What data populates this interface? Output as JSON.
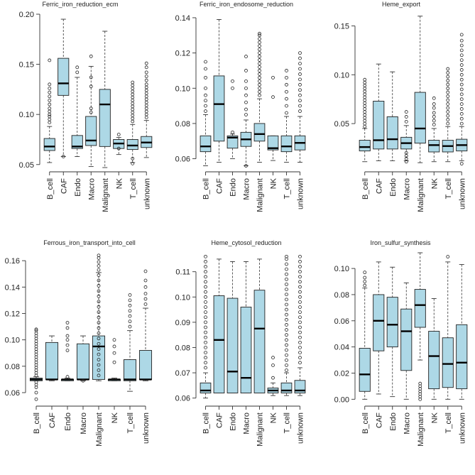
{
  "chart_data": [
    {
      "type": "boxplot",
      "title": "Ferric_iron_reduction_ecm",
      "categories": [
        "B_cell",
        "CAF",
        "Endo",
        "Macro",
        "Malignant",
        "NK",
        "T_cell",
        "unknown"
      ],
      "ylim": [
        0.047,
        0.2
      ],
      "yticks": [
        0.05,
        0.1,
        0.15,
        0.2
      ],
      "ytick_labels": [
        "0.05",
        "0.10",
        "0.15",
        "0.20"
      ],
      "boxes": [
        {
          "min": 0.052,
          "q1": 0.064,
          "median": 0.068,
          "q3": 0.076,
          "max": 0.088,
          "outliers": [
            0.092,
            0.095,
            0.098,
            0.1,
            0.103,
            0.106,
            0.11,
            0.114,
            0.118,
            0.122,
            0.126,
            0.13,
            0.154
          ]
        },
        {
          "min": 0.058,
          "q1": 0.119,
          "median": 0.131,
          "q3": 0.156,
          "max": 0.195,
          "outliers": [
            0.058
          ]
        },
        {
          "min": 0.058,
          "q1": 0.066,
          "median": 0.068,
          "q3": 0.079,
          "max": 0.137,
          "outliers": [
            0.142,
            0.147
          ]
        },
        {
          "min": 0.048,
          "q1": 0.069,
          "median": 0.074,
          "q3": 0.098,
          "max": 0.148,
          "outliers": [
            0.102,
            0.106,
            0.128,
            0.137,
            0.158
          ]
        },
        {
          "min": 0.047,
          "q1": 0.068,
          "median": 0.11,
          "q3": 0.125,
          "max": 0.183,
          "outliers": []
        },
        {
          "min": 0.06,
          "q1": 0.066,
          "median": 0.071,
          "q3": 0.075,
          "max": 0.077,
          "outliers": [
            0.066,
            0.08
          ]
        },
        {
          "min": 0.052,
          "q1": 0.065,
          "median": 0.069,
          "q3": 0.075,
          "max": 0.09,
          "outliers": [
            0.051,
            0.056,
            0.093,
            0.096,
            0.099,
            0.102,
            0.105,
            0.108,
            0.111,
            0.114,
            0.117,
            0.12,
            0.123,
            0.126,
            0.129,
            0.132
          ]
        },
        {
          "min": 0.057,
          "q1": 0.067,
          "median": 0.072,
          "q3": 0.078,
          "max": 0.094,
          "outliers": [
            0.097,
            0.1,
            0.103,
            0.106,
            0.109,
            0.112,
            0.115,
            0.118,
            0.121,
            0.124,
            0.127,
            0.13,
            0.134,
            0.138,
            0.142,
            0.147,
            0.151
          ]
        }
      ]
    },
    {
      "type": "boxplot",
      "title": "Ferric_iron_endosome_reduction",
      "categories": [
        "B_cell",
        "CAF",
        "Endo",
        "Macro",
        "Malignant",
        "NK",
        "T_cell",
        "unknown"
      ],
      "ylim": [
        0.055,
        0.142
      ],
      "yticks": [
        0.06,
        0.08,
        0.1,
        0.12,
        0.14
      ],
      "ytick_labels": [
        "0.06",
        "0.08",
        "0.10",
        "0.12",
        "0.14"
      ],
      "boxes": [
        {
          "min": 0.056,
          "q1": 0.064,
          "median": 0.067,
          "q3": 0.073,
          "max": 0.085,
          "outliers": [
            0.087,
            0.09,
            0.093,
            0.096,
            0.1,
            0.106,
            0.111,
            0.115
          ]
        },
        {
          "min": 0.058,
          "q1": 0.07,
          "median": 0.091,
          "q3": 0.107,
          "max": 0.139,
          "outliers": []
        },
        {
          "min": 0.06,
          "q1": 0.066,
          "median": 0.072,
          "q3": 0.073,
          "max": 0.074,
          "outliers": [
            0.075,
            0.1,
            0.104
          ]
        },
        {
          "min": 0.056,
          "q1": 0.067,
          "median": 0.071,
          "q3": 0.075,
          "max": 0.082,
          "outliers": [
            0.056,
            0.085,
            0.088,
            0.092,
            0.096,
            0.1,
            0.104,
            0.11,
            0.118
          ]
        },
        {
          "min": 0.058,
          "q1": 0.07,
          "median": 0.074,
          "q3": 0.08,
          "max": 0.094,
          "outliers": [
            0.096,
            0.098,
            0.1,
            0.102,
            0.104,
            0.106,
            0.108,
            0.11,
            0.112,
            0.114,
            0.116,
            0.118,
            0.12,
            0.122,
            0.124,
            0.126,
            0.128,
            0.13,
            0.131
          ]
        },
        {
          "min": 0.059,
          "q1": 0.065,
          "median": 0.066,
          "q3": 0.073,
          "max": 0.073,
          "outliers": [
            0.095,
            0.106
          ]
        },
        {
          "min": 0.058,
          "q1": 0.064,
          "median": 0.067,
          "q3": 0.073,
          "max": 0.084,
          "outliers": [
            0.086,
            0.09,
            0.094,
            0.098,
            0.102,
            0.106,
            0.11
          ]
        },
        {
          "min": 0.058,
          "q1": 0.065,
          "median": 0.069,
          "q3": 0.073,
          "max": 0.084,
          "outliers": [
            0.087,
            0.09,
            0.093,
            0.096,
            0.099,
            0.102,
            0.105,
            0.108,
            0.111,
            0.114,
            0.117,
            0.12
          ]
        }
      ]
    },
    {
      "type": "boxplot",
      "title": "Heme_export",
      "categories": [
        "B_cell",
        "CAF",
        "Endo",
        "Macro",
        "Malignant",
        "NK",
        "T_cell",
        "unknown"
      ],
      "ylim": [
        0.005,
        0.162
      ],
      "yticks": [
        0.05,
        0.1,
        0.15
      ],
      "ytick_labels": [
        "0.05",
        "0.10",
        "0.15"
      ],
      "boxes": [
        {
          "min": 0.011,
          "q1": 0.022,
          "median": 0.026,
          "q3": 0.033,
          "max": 0.045,
          "outliers": [
            0.047,
            0.05,
            0.053,
            0.056,
            0.059,
            0.062,
            0.065,
            0.068,
            0.071,
            0.074,
            0.077,
            0.08,
            0.083,
            0.086,
            0.089,
            0.092,
            0.095
          ]
        },
        {
          "min": 0.012,
          "q1": 0.024,
          "median": 0.033,
          "q3": 0.073,
          "max": 0.111,
          "outliers": []
        },
        {
          "min": 0.012,
          "q1": 0.024,
          "median": 0.034,
          "q3": 0.057,
          "max": 0.103,
          "outliers": []
        },
        {
          "min": 0.012,
          "q1": 0.024,
          "median": 0.03,
          "q3": 0.036,
          "max": 0.048,
          "outliers": [
            0.011,
            0.014,
            0.017,
            0.02,
            0.052,
            0.057,
            0.062
          ]
        },
        {
          "min": 0.01,
          "q1": 0.03,
          "median": 0.045,
          "q3": 0.082,
          "max": 0.16,
          "outliers": []
        },
        {
          "min": 0.011,
          "q1": 0.021,
          "median": 0.028,
          "q3": 0.033,
          "max": 0.045,
          "outliers": [
            0.049,
            0.053,
            0.057,
            0.061,
            0.066,
            0.07,
            0.076
          ]
        },
        {
          "min": 0.011,
          "q1": 0.021,
          "median": 0.027,
          "q3": 0.033,
          "max": 0.047,
          "outliers": [
            0.05,
            0.054,
            0.058,
            0.062,
            0.066,
            0.07,
            0.074,
            0.078,
            0.082,
            0.086,
            0.09,
            0.094,
            0.098,
            0.102,
            0.106
          ]
        },
        {
          "min": 0.012,
          "q1": 0.022,
          "median": 0.028,
          "q3": 0.034,
          "max": 0.047,
          "outliers": [
            0.009,
            0.05,
            0.055,
            0.06,
            0.065,
            0.07,
            0.075,
            0.08,
            0.085,
            0.09,
            0.095,
            0.1,
            0.105,
            0.11,
            0.115,
            0.12,
            0.125,
            0.13,
            0.135,
            0.141
          ]
        }
      ]
    },
    {
      "type": "boxplot",
      "title": "Ferrous_iron_transport_into_cell",
      "categories": [
        "B_cell",
        "CAF",
        "Endo",
        "Macro",
        "Malignant",
        "NK",
        "T_cell",
        "unknown"
      ],
      "ylim": [
        0.053,
        0.166
      ],
      "yticks": [
        0.06,
        0.08,
        0.1,
        0.12,
        0.14,
        0.16
      ],
      "ytick_labels": [
        "0.06",
        "0.08",
        "0.10",
        "0.12",
        "0.14",
        "0.16"
      ],
      "boxes": [
        {
          "min": 0.069,
          "q1": 0.069,
          "median": 0.07,
          "q3": 0.071,
          "max": 0.072,
          "outliers": [
            0.055,
            0.06,
            0.064,
            0.066,
            0.068,
            0.073,
            0.075,
            0.077,
            0.079,
            0.081,
            0.083,
            0.085,
            0.087,
            0.089,
            0.091,
            0.093,
            0.095,
            0.097,
            0.099,
            0.101,
            0.103,
            0.105,
            0.107,
            0.108
          ]
        },
        {
          "min": 0.069,
          "q1": 0.07,
          "median": 0.07,
          "q3": 0.098,
          "max": 0.103,
          "outliers": []
        },
        {
          "min": 0.069,
          "q1": 0.069,
          "median": 0.07,
          "q3": 0.07,
          "max": 0.071,
          "outliers": [
            0.072,
            0.092,
            0.096,
            0.1,
            0.103,
            0.109,
            0.113
          ]
        },
        {
          "min": 0.069,
          "q1": 0.07,
          "median": 0.07,
          "q3": 0.097,
          "max": 0.103,
          "outliers": [
            0.069
          ]
        },
        {
          "min": 0.069,
          "q1": 0.07,
          "median": 0.095,
          "q3": 0.103,
          "max": 0.151,
          "outliers": [
            0.073,
            0.077,
            0.081,
            0.085,
            0.089,
            0.093,
            0.097,
            0.101,
            0.105,
            0.109,
            0.113,
            0.117,
            0.121,
            0.125,
            0.129,
            0.133,
            0.137,
            0.141,
            0.145,
            0.149,
            0.153,
            0.156,
            0.159,
            0.162,
            0.164
          ]
        },
        {
          "min": 0.069,
          "q1": 0.069,
          "median": 0.07,
          "q3": 0.07,
          "max": 0.071,
          "outliers": [
            0.083,
            0.09,
            0.095,
            0.1
          ]
        },
        {
          "min": 0.061,
          "q1": 0.069,
          "median": 0.07,
          "q3": 0.085,
          "max": 0.107,
          "outliers": [
            0.11,
            0.114,
            0.118,
            0.122,
            0.126,
            0.13,
            0.134
          ]
        },
        {
          "min": 0.069,
          "q1": 0.07,
          "median": 0.07,
          "q3": 0.092,
          "max": 0.124,
          "outliers": [
            0.127,
            0.131,
            0.135,
            0.14,
            0.145,
            0.152
          ]
        }
      ]
    },
    {
      "type": "boxplot",
      "title": "Heme_cytosol_reduction",
      "categories": [
        "B_cell",
        "CAF",
        "Endo",
        "Macro",
        "Malignant",
        "NK",
        "T_cell",
        "unknown"
      ],
      "ylim": [
        0.0585,
        0.1175
      ],
      "yticks": [
        0.06,
        0.07,
        0.08,
        0.09,
        0.1,
        0.11
      ],
      "ytick_labels": [
        "0.06",
        "0.07",
        "0.08",
        "0.09",
        "0.10",
        "0.11"
      ],
      "boxes": [
        {
          "min": 0.06,
          "q1": 0.062,
          "median": 0.063,
          "q3": 0.066,
          "max": 0.07,
          "outliers": [
            0.072,
            0.074,
            0.076,
            0.078,
            0.08,
            0.082,
            0.084,
            0.086,
            0.088,
            0.09,
            0.092,
            0.094,
            0.096,
            0.098,
            0.1,
            0.102,
            0.104,
            0.106,
            0.108,
            0.11,
            0.112,
            0.114,
            0.116
          ]
        },
        {
          "min": 0.062,
          "q1": 0.062,
          "median": 0.083,
          "q3": 0.1005,
          "max": 0.115,
          "outliers": []
        },
        {
          "min": 0.062,
          "q1": 0.062,
          "median": 0.0705,
          "q3": 0.0995,
          "max": 0.114,
          "outliers": []
        },
        {
          "min": 0.062,
          "q1": 0.062,
          "median": 0.068,
          "q3": 0.096,
          "max": 0.114,
          "outliers": []
        },
        {
          "min": 0.062,
          "q1": 0.062,
          "median": 0.0875,
          "q3": 0.1027,
          "max": 0.115,
          "outliers": []
        },
        {
          "min": 0.061,
          "q1": 0.062,
          "median": 0.063,
          "q3": 0.064,
          "max": 0.066,
          "outliers": [
            0.068,
            0.073,
            0.076
          ]
        },
        {
          "min": 0.061,
          "q1": 0.062,
          "median": 0.063,
          "q3": 0.066,
          "max": 0.07,
          "outliers": [
            0.071,
            0.073,
            0.075,
            0.077,
            0.079,
            0.081,
            0.083,
            0.085,
            0.087,
            0.089,
            0.091,
            0.093,
            0.095,
            0.097,
            0.099,
            0.101,
            0.103,
            0.105,
            0.107,
            0.109,
            0.111,
            0.113,
            0.115,
            0.116
          ]
        },
        {
          "min": 0.061,
          "q1": 0.062,
          "median": 0.063,
          "q3": 0.067,
          "max": 0.072,
          "outliers": [
            0.074,
            0.076,
            0.078,
            0.08,
            0.082,
            0.084,
            0.086,
            0.088,
            0.09,
            0.092,
            0.094,
            0.096,
            0.098,
            0.1,
            0.102,
            0.104,
            0.106,
            0.108,
            0.11,
            0.112,
            0.114,
            0.116
          ]
        }
      ]
    },
    {
      "type": "boxplot",
      "title": "Iron_sulfur_synthesis",
      "categories": [
        "B_cell",
        "CAF",
        "Endo",
        "Macro",
        "Malignant",
        "NK",
        "T_cell",
        "unknown"
      ],
      "ylim": [
        -0.002,
        0.112
      ],
      "yticks": [
        0.0,
        0.02,
        0.04,
        0.06,
        0.08,
        0.1
      ],
      "ytick_labels": [
        "0.00",
        "0.02",
        "0.04",
        "0.06",
        "0.08",
        "0.10"
      ],
      "boxes": [
        {
          "min": 0.0,
          "q1": 0.006,
          "median": 0.019,
          "q3": 0.039,
          "max": 0.085,
          "outliers": [
            0.087,
            0.09,
            0.093,
            0.097
          ]
        },
        {
          "min": 0.004,
          "q1": 0.037,
          "median": 0.06,
          "q3": 0.08,
          "max": 0.105,
          "outliers": []
        },
        {
          "min": 0.002,
          "q1": 0.04,
          "median": 0.057,
          "q3": 0.078,
          "max": 0.101,
          "outliers": []
        },
        {
          "min": 0.0,
          "q1": 0.022,
          "median": 0.052,
          "q3": 0.069,
          "max": 0.089,
          "outliers": []
        },
        {
          "min": 0.03,
          "q1": 0.055,
          "median": 0.072,
          "q3": 0.084,
          "max": 0.112,
          "outliers": [
            0.0,
            0.002,
            0.004,
            0.006,
            0.008,
            0.01,
            0.012
          ]
        },
        {
          "min": 0.0,
          "q1": 0.008,
          "median": 0.033,
          "q3": 0.052,
          "max": 0.077,
          "outliers": []
        },
        {
          "min": 0.0,
          "q1": 0.009,
          "median": 0.027,
          "q3": 0.047,
          "max": 0.105,
          "outliers": [
            0.109
          ]
        },
        {
          "min": 0.0,
          "q1": 0.008,
          "median": 0.028,
          "q3": 0.057,
          "max": 0.103,
          "outliers": []
        }
      ]
    }
  ]
}
